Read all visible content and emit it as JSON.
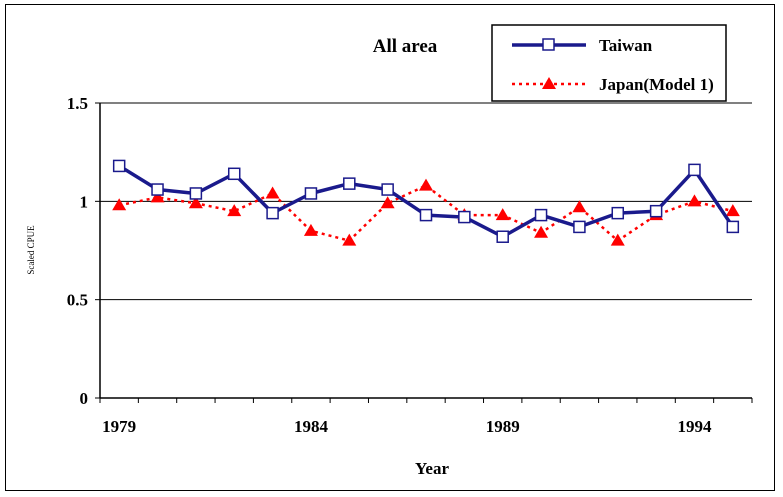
{
  "chart_data": {
    "type": "line",
    "title": "All area",
    "xlabel": "Year",
    "ylabel": "Scaled CPUE",
    "ylim": [
      0,
      1.5
    ],
    "yticks": [
      "0",
      "0.5",
      "1",
      "1.5"
    ],
    "xticks": [
      "1979",
      "1984",
      "1989",
      "1994"
    ],
    "gridlines": [
      0.5,
      1,
      1.5
    ],
    "legend_position": "top-right",
    "x": [
      1979,
      1980,
      1981,
      1982,
      1983,
      1984,
      1985,
      1986,
      1987,
      1988,
      1989,
      1990,
      1991,
      1992,
      1993,
      1994,
      1995
    ],
    "series": [
      {
        "name": "Taiwan",
        "color": "#1a1a8c",
        "marker": "square",
        "line": "solid",
        "values": [
          1.18,
          1.06,
          1.04,
          1.14,
          0.94,
          1.04,
          1.09,
          1.06,
          0.93,
          0.92,
          0.82,
          0.93,
          0.87,
          0.94,
          0.95,
          1.16,
          0.87
        ]
      },
      {
        "name": "Japan(Model 1)",
        "color": "#ff0000",
        "marker": "triangle",
        "line": "dotted",
        "values": [
          0.98,
          1.02,
          0.99,
          0.95,
          1.04,
          0.85,
          0.8,
          0.99,
          1.08,
          0.93,
          0.93,
          0.84,
          0.97,
          0.8,
          0.93,
          1.0,
          0.95
        ]
      }
    ]
  }
}
